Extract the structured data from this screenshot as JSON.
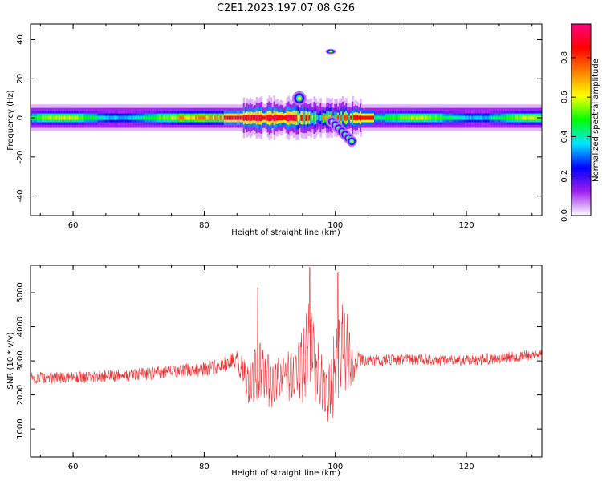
{
  "figure_title": "C2E1.2023.197.07.08.G26",
  "chart_data": [
    {
      "type": "heatmap",
      "title": "C2E1.2023.197.07.08.G26",
      "xlabel": "Height of straight line (km)",
      "ylabel": "Frequency (Hz)",
      "xlim": [
        53.5,
        131.5
      ],
      "ylim": [
        -50,
        48
      ],
      "x_ticks": [
        60,
        80,
        100,
        120
      ],
      "y_ticks": [
        40,
        20,
        0,
        -20,
        -40
      ],
      "colorbar": {
        "label": "Normalized spectral amplitude",
        "ticks": [
          0.0,
          0.2,
          0.4,
          0.6,
          0.8
        ],
        "range": [
          0,
          0.97
        ],
        "colormap": [
          "#ffffff",
          "#a020f0",
          "#0000ff",
          "#00e5ff",
          "#00ff00",
          "#ffff00",
          "#ff8000",
          "#ff0000",
          "#ff0080"
        ]
      },
      "features": {
        "main_band": {
          "x_range": [
            53.5,
            131.5
          ],
          "freq_center": 0,
          "half_width_hz": 3,
          "peak_amplitude_x_range": [
            83,
            94
          ]
        },
        "upper_blob": {
          "x": 94.5,
          "freq": 10
        },
        "isolated_spot": {
          "x": 99.3,
          "freq": 34
        },
        "lower_streak": {
          "x_range": [
            99.5,
            102.5
          ],
          "freq_range": [
            -2,
            -12
          ]
        }
      }
    },
    {
      "type": "line",
      "xlabel": "Height of straight line (km)",
      "ylabel": "SNR (10 * v/v)",
      "xlim": [
        53.5,
        131.5
      ],
      "ylim": [
        180,
        5800
      ],
      "x_ticks": [
        60,
        80,
        100,
        120
      ],
      "y_ticks": [
        1000,
        2000,
        3000,
        4000,
        5000
      ],
      "color": "#ee3333",
      "envelope": {
        "x": [
          53.5,
          60,
          70,
          76,
          80,
          83,
          85,
          87,
          88.5,
          90,
          92,
          93.5,
          95,
          96,
          97.5,
          98.5,
          99.5,
          100.5,
          101.5,
          102.5,
          103.5,
          105,
          110,
          120,
          131.5
        ],
        "center": [
          2500,
          2500,
          2600,
          2700,
          2750,
          2900,
          3000,
          2300,
          2800,
          2300,
          2700,
          2500,
          2900,
          3600,
          2500,
          2200,
          2200,
          3200,
          3500,
          2900,
          3000,
          3000,
          3050,
          3000,
          3200
        ],
        "spread": [
          320,
          320,
          350,
          360,
          380,
          420,
          600,
          1100,
          1500,
          1200,
          1100,
          1300,
          1800,
          2200,
          1800,
          1400,
          2000,
          2300,
          2100,
          1200,
          450,
          300,
          300,
          300,
          300
        ]
      },
      "peaks": [
        {
          "x": 88.2,
          "value": 5150
        },
        {
          "x": 96.1,
          "value": 5750
        },
        {
          "x": 100.4,
          "value": 5600
        }
      ]
    }
  ]
}
